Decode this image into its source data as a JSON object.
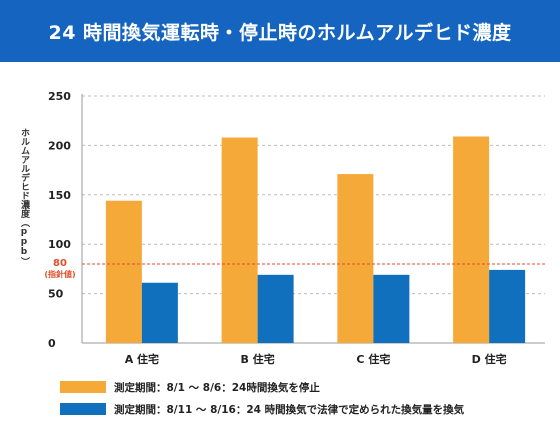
{
  "header": {
    "title": "24 時間換気運転時・停止時のホルムアルデヒド濃度"
  },
  "chart_data": {
    "type": "bar",
    "title": "24 時間換気運転時・停止時のホルムアルデヒド濃度",
    "xlabel": "",
    "ylabel": "ホルムアルデヒド濃度（ppb）",
    "ylim": [
      0,
      250
    ],
    "yticks": [
      0,
      50,
      100,
      150,
      200,
      250
    ],
    "grid": true,
    "legend_position": "bottom",
    "categories": [
      "A 住宅",
      "B 住宅",
      "C 住宅",
      "D 住宅"
    ],
    "series": [
      {
        "name": "測定期間：8/1 ～ 8/6：24時間換気を停止",
        "color": "#F5A938",
        "values": [
          144,
          208,
          171,
          209
        ]
      },
      {
        "name": "測定期間：8/11 ～ 8/16：24 時間換気で法律で定められた換気量を換気",
        "color": "#1070BE",
        "values": [
          61,
          69,
          69,
          74
        ]
      }
    ],
    "reference_line": {
      "value": 80,
      "label": "80",
      "sublabel": "(指針値)",
      "color": "#E0502A"
    }
  }
}
